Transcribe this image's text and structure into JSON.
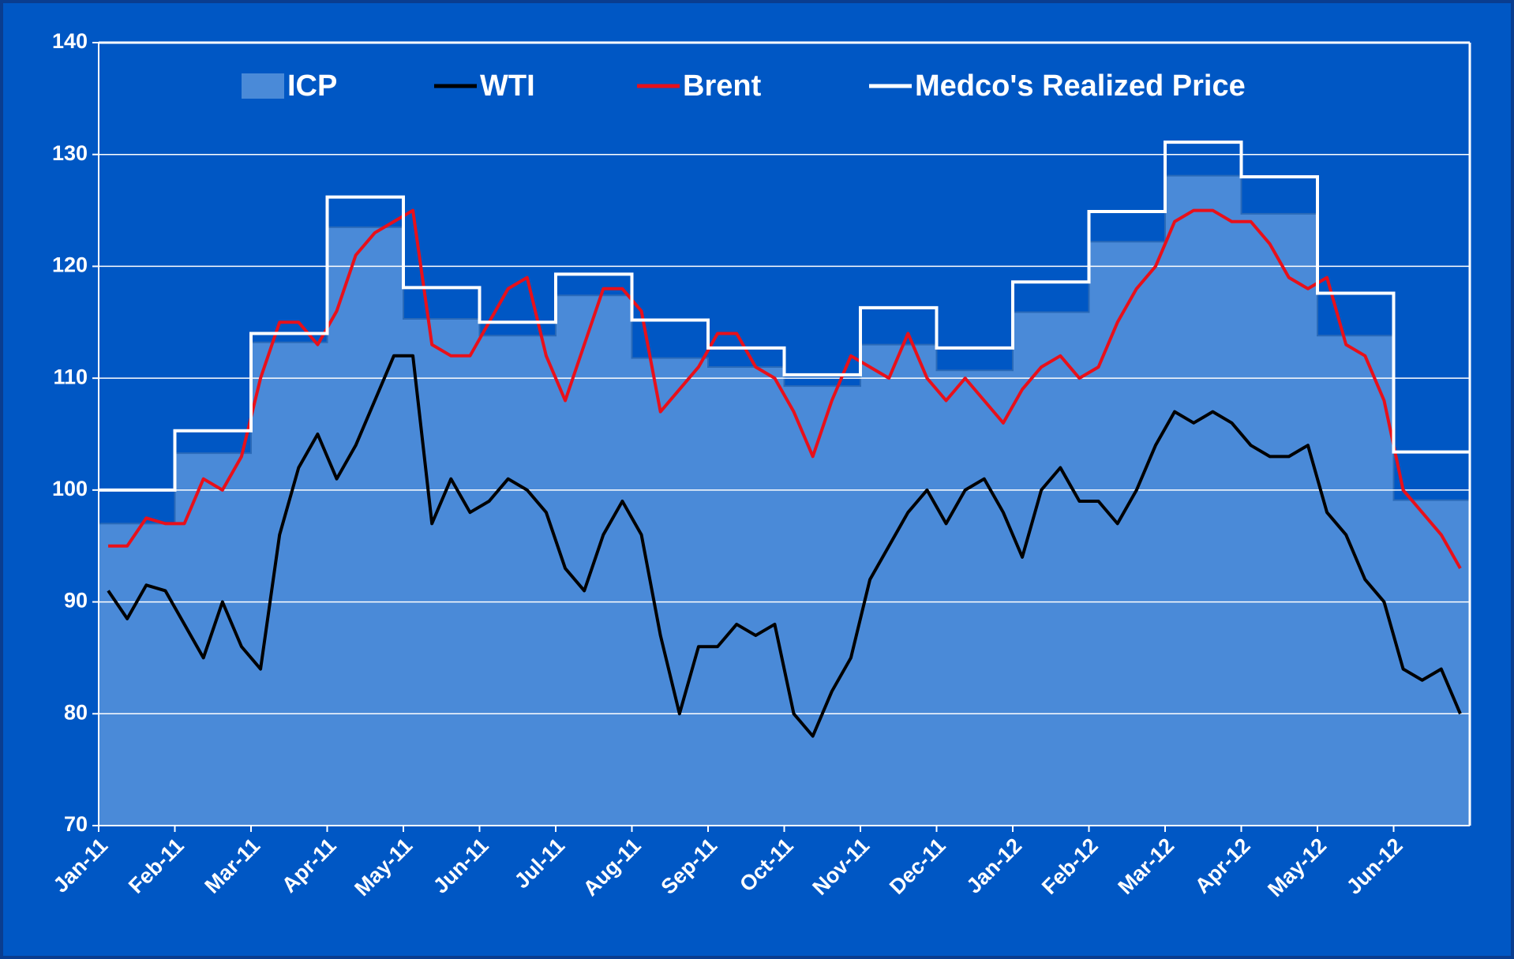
{
  "chart_data": {
    "type": "line",
    "categories": [
      "Jan-11",
      "Feb-11",
      "Mar-11",
      "Apr-11",
      "May-11",
      "Jun-11",
      "Jul-11",
      "Aug-11",
      "Sep-11",
      "Oct-11",
      "Nov-11",
      "Dec-11",
      "Jan-12",
      "Feb-12",
      "Mar-12",
      "Apr-12",
      "May-12",
      "Jun-12"
    ],
    "ylim": [
      70,
      140
    ],
    "yticks": [
      70,
      80,
      90,
      100,
      110,
      120,
      130,
      140
    ],
    "grid": true,
    "legend": "top",
    "series": [
      {
        "name": "ICP",
        "color": "#4a8ad8",
        "style": "step-area",
        "values": [
          97,
          103.3,
          113.2,
          123.5,
          115.3,
          113.8,
          117.4,
          111.8,
          111.0,
          109.3,
          113.0,
          110.7,
          115.9,
          122.2,
          128.1,
          124.7,
          113.8,
          99.1
        ]
      },
      {
        "name": "WTI",
        "color": "#000000",
        "style": "line",
        "values": [
          [
            91,
            88.5,
            91.5,
            91
          ],
          [
            88,
            85,
            90,
            86
          ],
          [
            84,
            96,
            102,
            105
          ],
          [
            101,
            104,
            108,
            112
          ],
          [
            112,
            97,
            101,
            98
          ],
          [
            99,
            101,
            100,
            98
          ],
          [
            93,
            91,
            96,
            99
          ],
          [
            96,
            87,
            80,
            86
          ],
          [
            86,
            88,
            87,
            88
          ],
          [
            80,
            78,
            82,
            85
          ],
          [
            92,
            95,
            98,
            100
          ],
          [
            97,
            100,
            101,
            98
          ],
          [
            94,
            100,
            102,
            99
          ],
          [
            99,
            97,
            100,
            104
          ],
          [
            107,
            106,
            107,
            106
          ],
          [
            104,
            103,
            103,
            104
          ],
          [
            98,
            96,
            92,
            90
          ],
          [
            84,
            83,
            84,
            80
          ]
        ]
      },
      {
        "name": "Brent",
        "color": "#e8101a",
        "style": "line",
        "values": [
          [
            95,
            95,
            97.5,
            97
          ],
          [
            97,
            101,
            100,
            103
          ],
          [
            110,
            115,
            115,
            113
          ],
          [
            116,
            121,
            123,
            124
          ],
          [
            125,
            113,
            112,
            112
          ],
          [
            115,
            118,
            119,
            112
          ],
          [
            108,
            113,
            118,
            118
          ],
          [
            116,
            107,
            109,
            111
          ],
          [
            114,
            114,
            111,
            110
          ],
          [
            107,
            103,
            108,
            112
          ],
          [
            111,
            110,
            114,
            110
          ],
          [
            108,
            110,
            108,
            106
          ],
          [
            109,
            111,
            112,
            110
          ],
          [
            111,
            115,
            118,
            120
          ],
          [
            124,
            125,
            125,
            124
          ],
          [
            124,
            122,
            119,
            118
          ],
          [
            119,
            113,
            112,
            108
          ],
          [
            100,
            98,
            96,
            93
          ]
        ]
      },
      {
        "name": "Medco's Realized Price",
        "color": "#ffffff",
        "style": "step",
        "values": [
          100,
          105.3,
          114,
          126.2,
          118.1,
          115,
          119.3,
          115.2,
          112.7,
          110.3,
          116.3,
          112.7,
          118.6,
          124.9,
          131.1,
          128,
          117.6,
          103.4
        ]
      }
    ]
  }
}
